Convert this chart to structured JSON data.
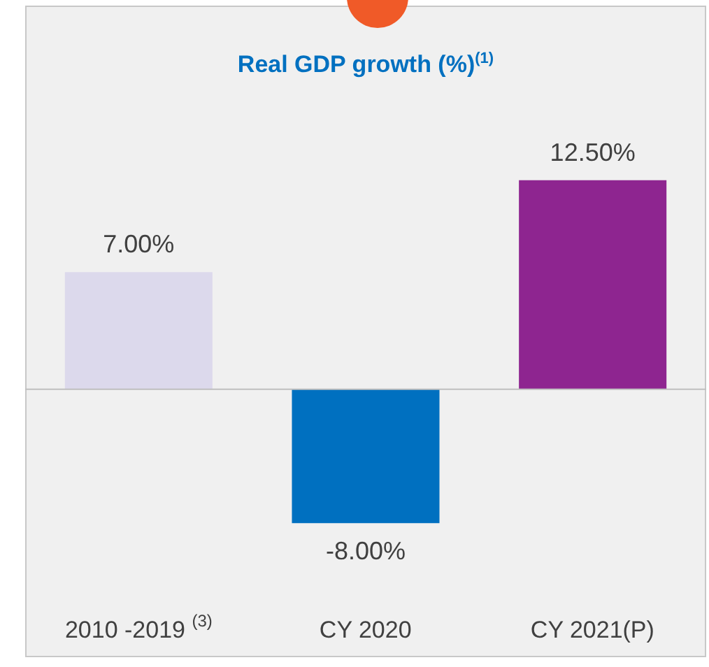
{
  "chart_data": {
    "type": "bar",
    "title": "Real GDP growth (%)$^{(1)}$",
    "categories": [
      "2010 -2019 $^{(3)}$",
      "CY 2020",
      "CY 2021(P)"
    ],
    "values": [
      7.0,
      -8.0,
      12.5
    ],
    "colors": [
      "#dcd9ec",
      "#0070c0",
      "#8e2590"
    ],
    "value_labels": [
      "7.00%",
      "-8.00%",
      "12.50%"
    ],
    "legend": false
  }
}
